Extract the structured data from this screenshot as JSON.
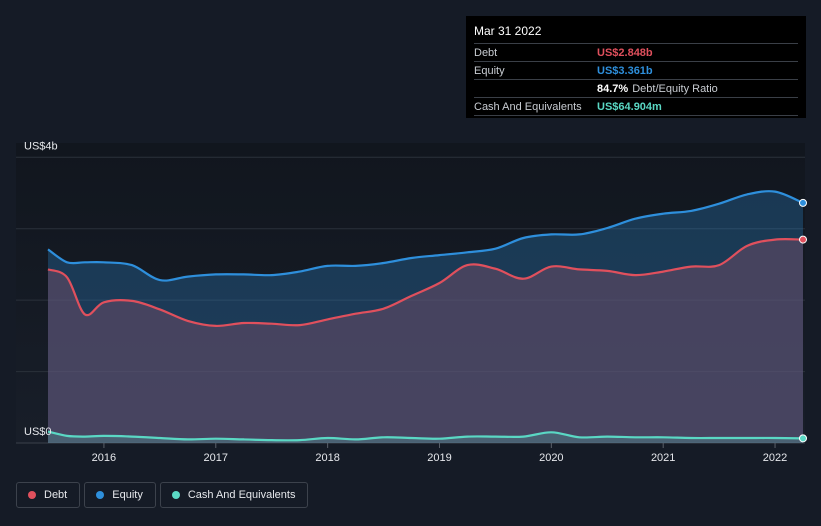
{
  "chart_data": {
    "type": "area",
    "title": "",
    "xlabel": "",
    "ylabel": "",
    "y_unit_label": "US$ billions",
    "ylim": [
      0,
      4.2
    ],
    "y_tick_labels": [
      "US$0",
      "US$4b"
    ],
    "y_tick_values": [
      0,
      4
    ],
    "x_tick_labels": [
      "2016",
      "2017",
      "2018",
      "2019",
      "2020",
      "2021",
      "2022"
    ],
    "x_tick_values": [
      2016,
      2017,
      2018,
      2019,
      2020,
      2021,
      2022
    ],
    "xlim": [
      2015.5,
      2022.25
    ],
    "legend_position": "bottom-left",
    "series": [
      {
        "name": "Equity",
        "color": "#2e8fdc",
        "x": [
          2015.5,
          2015.67,
          2015.83,
          2016.0,
          2016.25,
          2016.5,
          2016.75,
          2017.0,
          2017.25,
          2017.5,
          2017.75,
          2018.0,
          2018.25,
          2018.5,
          2018.75,
          2019.0,
          2019.25,
          2019.5,
          2019.75,
          2020.0,
          2020.25,
          2020.5,
          2020.75,
          2021.0,
          2021.25,
          2021.5,
          2021.75,
          2022.0,
          2022.25
        ],
        "values": [
          2.71,
          2.53,
          2.53,
          2.53,
          2.49,
          2.28,
          2.33,
          2.36,
          2.36,
          2.35,
          2.4,
          2.48,
          2.48,
          2.52,
          2.59,
          2.63,
          2.67,
          2.72,
          2.87,
          2.92,
          2.92,
          3.01,
          3.14,
          3.21,
          3.25,
          3.35,
          3.48,
          3.52,
          3.361
        ]
      },
      {
        "name": "Debt",
        "color": "#e0505d",
        "x": [
          2015.5,
          2015.67,
          2015.83,
          2016.0,
          2016.25,
          2016.5,
          2016.75,
          2017.0,
          2017.25,
          2017.5,
          2017.75,
          2018.0,
          2018.25,
          2018.5,
          2018.75,
          2019.0,
          2019.25,
          2019.5,
          2019.75,
          2020.0,
          2020.25,
          2020.5,
          2020.75,
          2021.0,
          2021.25,
          2021.5,
          2021.75,
          2022.0,
          2022.25
        ],
        "values": [
          2.43,
          2.32,
          1.8,
          1.97,
          1.99,
          1.87,
          1.71,
          1.64,
          1.68,
          1.67,
          1.65,
          1.73,
          1.81,
          1.88,
          2.06,
          2.24,
          2.49,
          2.44,
          2.3,
          2.47,
          2.43,
          2.41,
          2.35,
          2.4,
          2.47,
          2.49,
          2.76,
          2.848,
          2.848
        ]
      },
      {
        "name": "Cash And Equivalents",
        "color": "#5ad8c4",
        "x": [
          2015.5,
          2015.67,
          2015.83,
          2016.0,
          2016.25,
          2016.5,
          2016.75,
          2017.0,
          2017.25,
          2017.5,
          2017.75,
          2018.0,
          2018.25,
          2018.5,
          2018.75,
          2019.0,
          2019.25,
          2019.5,
          2019.75,
          2020.0,
          2020.25,
          2020.5,
          2020.75,
          2021.0,
          2021.25,
          2021.5,
          2021.75,
          2022.0,
          2022.25
        ],
        "values": [
          0.16,
          0.1,
          0.09,
          0.1,
          0.09,
          0.07,
          0.05,
          0.06,
          0.05,
          0.04,
          0.04,
          0.07,
          0.05,
          0.08,
          0.07,
          0.06,
          0.09,
          0.09,
          0.09,
          0.15,
          0.08,
          0.09,
          0.08,
          0.08,
          0.07,
          0.07,
          0.07,
          0.07,
          0.065
        ]
      }
    ]
  },
  "tooltip": {
    "date": "Mar 31 2022",
    "rows": [
      {
        "label": "Debt",
        "value": "US$2.848b",
        "color": "#e0505d"
      },
      {
        "label": "Equity",
        "value": "US$3.361b",
        "color": "#2e8fdc"
      },
      {
        "label": "",
        "ratio_value": "84.7%",
        "ratio_text": "Debt/Equity Ratio"
      },
      {
        "label": "Cash And Equivalents",
        "value": "US$64.904m",
        "color": "#5ad8c4"
      }
    ]
  },
  "legend": [
    {
      "label": "Debt",
      "color": "#e0505d"
    },
    {
      "label": "Equity",
      "color": "#2e8fdc"
    },
    {
      "label": "Cash And Equivalents",
      "color": "#5ad8c4"
    }
  ]
}
